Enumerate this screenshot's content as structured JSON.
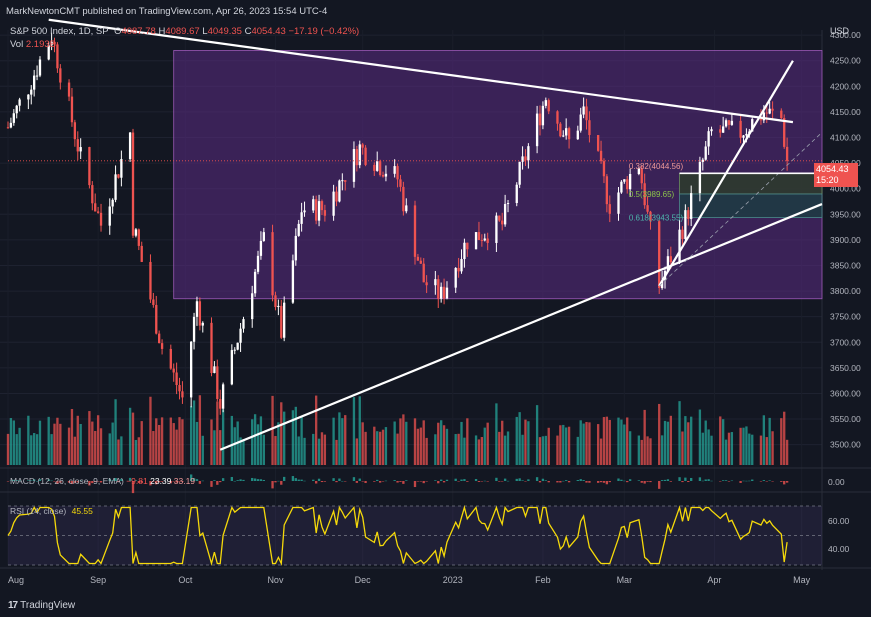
{
  "header": {
    "publisher_line": "MarkNewtonCMT published on TradingView.com, Apr 26, 2023 15:54 UTC-4",
    "symbol": "S&P 500 Index, 1D, SP",
    "open_label": "O",
    "open": "4087.78",
    "high_label": "H",
    "high": "4089.67",
    "low_label": "L",
    "low": "4049.35",
    "close_label": "C",
    "close": "4054.43",
    "change": "−17.19 (−0.42%)",
    "vol_label": "Vol",
    "vol": "2.193B"
  },
  "currency": "USD",
  "price_tag": {
    "value": "4054.43",
    "countdown": "15:20"
  },
  "fib_labels": [
    {
      "label": "0.382(4044.56)",
      "value": 4044.56
    },
    {
      "label": "0.5(3989.65)",
      "value": 3989.65
    },
    {
      "label": "0.618(3943.55)",
      "value": 3943.55
    }
  ],
  "macd": {
    "label": "MACD (12, 26, close, 9, EMA)",
    "v1": "−9.81",
    "v2": "23.39",
    "v3": "33.19",
    "zero": "0.00"
  },
  "rsi": {
    "label": "RSI (14, close)",
    "value": "45.55",
    "ticks": [
      "60.00",
      "40.00"
    ]
  },
  "footer": {
    "brand": "TradingView"
  },
  "colors": {
    "up": "#26a69a",
    "up_candle": "#ffffff",
    "down": "#ef5350",
    "zone": "#5b2c83",
    "rsi": "#f5d90a",
    "bg": "#131722"
  },
  "chart_data": {
    "type": "candlestick",
    "symbol": "S&P 500 Index",
    "interval": "1D",
    "x_tick_labels": [
      "Aug",
      "Sep",
      "Oct",
      "Nov",
      "Dec",
      "2023",
      "Feb",
      "Mar",
      "Apr",
      "May"
    ],
    "y_tick_labels": [
      "4300.00",
      "4250.00",
      "4200.00",
      "4150.00",
      "4100.00",
      "4050.00",
      "4000.00",
      "3950.00",
      "3900.00",
      "3850.00",
      "3800.00",
      "3750.00",
      "3700.00",
      "3650.00",
      "3600.00",
      "3550.00",
      "3500.00"
    ],
    "ylim": [
      3470,
      4310
    ],
    "date_range": [
      "2022-08-01",
      "2023-05-08"
    ],
    "price_path": [
      {
        "date": "2022-08-01",
        "close": 4120
      },
      {
        "date": "2022-08-08",
        "close": 4200
      },
      {
        "date": "2022-08-16",
        "close": 4300
      },
      {
        "date": "2022-08-19",
        "close": 4230
      },
      {
        "date": "2022-08-26",
        "close": 4060
      },
      {
        "date": "2022-09-02",
        "close": 3930
      },
      {
        "date": "2022-09-12",
        "close": 4110
      },
      {
        "date": "2022-09-13",
        "close": 3930
      },
      {
        "date": "2022-09-23",
        "close": 3690
      },
      {
        "date": "2022-09-30",
        "close": 3590
      },
      {
        "date": "2022-10-05",
        "close": 3780
      },
      {
        "date": "2022-10-13",
        "close": 3580
      },
      {
        "date": "2022-10-21",
        "close": 3750
      },
      {
        "date": "2022-10-28",
        "close": 3900
      },
      {
        "date": "2022-11-03",
        "close": 3720
      },
      {
        "date": "2022-11-10",
        "close": 3960
      },
      {
        "date": "2022-11-18",
        "close": 3960
      },
      {
        "date": "2022-11-30",
        "close": 4080
      },
      {
        "date": "2022-12-13",
        "close": 4020
      },
      {
        "date": "2022-12-22",
        "close": 3820
      },
      {
        "date": "2022-12-28",
        "close": 3790
      },
      {
        "date": "2023-01-06",
        "close": 3900
      },
      {
        "date": "2023-01-18",
        "close": 3930
      },
      {
        "date": "2023-02-02",
        "close": 4180
      },
      {
        "date": "2023-02-10",
        "close": 4090
      },
      {
        "date": "2023-02-15",
        "close": 4150
      },
      {
        "date": "2023-02-24",
        "close": 3970
      },
      {
        "date": "2023-03-06",
        "close": 4050
      },
      {
        "date": "2023-03-13",
        "close": 3810
      },
      {
        "date": "2023-03-22",
        "close": 3940
      },
      {
        "date": "2023-03-31",
        "close": 4110
      },
      {
        "date": "2023-04-10",
        "close": 4110
      },
      {
        "date": "2023-04-18",
        "close": 4150
      },
      {
        "date": "2023-04-24",
        "close": 4137
      },
      {
        "date": "2023-04-26",
        "close": 4054
      }
    ],
    "trendlines": [
      {
        "name": "downtrend",
        "from": {
          "date": "2022-08-15",
          "price": 4330
        },
        "to": {
          "date": "2023-04-28",
          "price": 4130
        }
      },
      {
        "name": "uptrend-lower",
        "from": {
          "date": "2022-10-13",
          "price": 3490
        },
        "to": {
          "date": "2023-05-08",
          "price": 3970
        }
      },
      {
        "name": "uptrend-steep",
        "from": {
          "date": "2023-03-13",
          "price": 3810
        },
        "to": {
          "date": "2023-04-28",
          "price": 4250
        }
      },
      {
        "name": "dashed-projection",
        "from": {
          "date": "2023-03-13",
          "price": 3810
        },
        "to": {
          "date": "2023-05-08",
          "price": 4110
        }
      },
      {
        "name": "horizontal-support",
        "from": {
          "date": "2023-03-20",
          "price": 4030
        },
        "to": {
          "date": "2023-05-08",
          "price": 4030
        }
      }
    ],
    "zones": [
      {
        "name": "range-box",
        "from": "2022-09-27",
        "to": "2023-05-08",
        "low": 3785,
        "high": 4270
      },
      {
        "name": "fib-zone-upper",
        "from": "2023-03-20",
        "to": "2023-05-08",
        "low": 3989.65,
        "high": 4030
      },
      {
        "name": "fib-zone-lower",
        "from": "2023-03-20",
        "to": "2023-05-08",
        "low": 3943.55,
        "high": 3989.65
      }
    ],
    "rsi_ylim": [
      30,
      70
    ],
    "rsi_last": 45.55
  }
}
